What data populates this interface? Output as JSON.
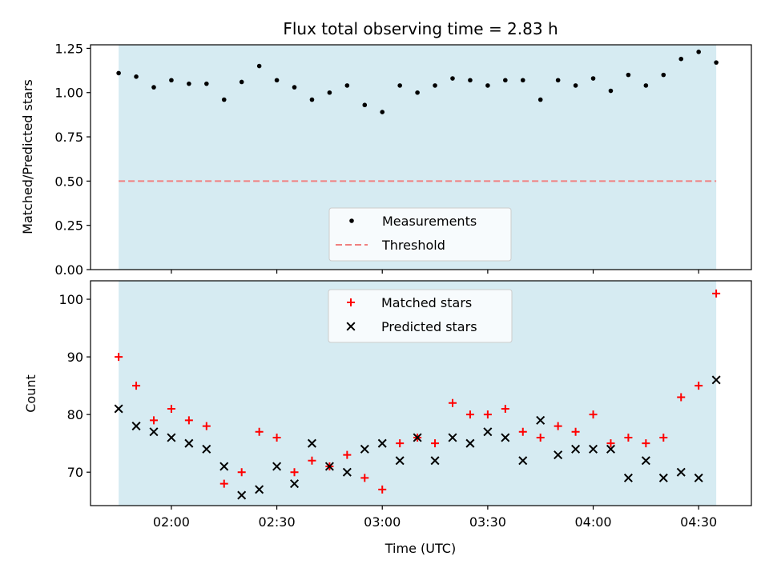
{
  "chart_data": [
    {
      "type": "scatter",
      "title": "Flux total observing time = 2.83 h",
      "ylabel": "Matched/Predicted stars",
      "xlim": [
        "01:37",
        "04:45"
      ],
      "ylim": [
        0,
        1.27
      ],
      "yticks": [
        "0.00",
        "0.25",
        "0.50",
        "0.75",
        "1.00",
        "1.25"
      ],
      "shaded_x_range": [
        "01:45",
        "04:35"
      ],
      "shade_color": "#add8e6",
      "grid": false,
      "legend_position": "lower center",
      "series": [
        {
          "name": "Measurements",
          "marker": "dot",
          "color": "#000000",
          "x": [
            "01:45",
            "01:50",
            "01:55",
            "02:00",
            "02:05",
            "02:10",
            "02:15",
            "02:20",
            "02:25",
            "02:30",
            "02:35",
            "02:40",
            "02:45",
            "02:50",
            "02:55",
            "03:00",
            "03:05",
            "03:10",
            "03:15",
            "03:20",
            "03:25",
            "03:30",
            "03:35",
            "03:40",
            "03:45",
            "03:50",
            "03:55",
            "04:00",
            "04:05",
            "04:10",
            "04:15",
            "04:20",
            "04:25",
            "04:30",
            "04:35"
          ],
          "y": [
            1.11,
            1.09,
            1.03,
            1.07,
            1.05,
            1.05,
            0.96,
            1.06,
            1.15,
            1.07,
            1.03,
            0.96,
            1.0,
            1.04,
            0.93,
            0.89,
            1.04,
            1.0,
            1.04,
            1.08,
            1.07,
            1.04,
            1.07,
            1.07,
            0.96,
            1.07,
            1.04,
            1.08,
            1.01,
            1.1,
            1.04,
            1.1,
            1.19,
            1.23,
            1.17
          ]
        },
        {
          "name": "Threshold",
          "line": "dashed",
          "color": "#f08080",
          "x": [
            "01:45",
            "04:35"
          ],
          "y": [
            0.5,
            0.5
          ]
        }
      ]
    },
    {
      "type": "scatter",
      "xlabel": "Time (UTC)",
      "ylabel": "Count",
      "xlim": [
        "01:37",
        "04:45"
      ],
      "ylim": [
        64.2,
        103.2
      ],
      "yticks": [
        "70",
        "80",
        "90",
        "100"
      ],
      "xticks": [
        "02:00",
        "02:30",
        "03:00",
        "03:30",
        "04:00",
        "04:30"
      ],
      "shaded_x_range": [
        "01:45",
        "04:35"
      ],
      "shade_color": "#add8e6",
      "grid": false,
      "legend_position": "upper center",
      "series": [
        {
          "name": "Matched stars",
          "marker": "plus",
          "color": "#ff0000",
          "x": [
            "01:45",
            "01:50",
            "01:55",
            "02:00",
            "02:05",
            "02:10",
            "02:15",
            "02:20",
            "02:25",
            "02:30",
            "02:35",
            "02:40",
            "02:45",
            "02:50",
            "02:55",
            "03:00",
            "03:05",
            "03:10",
            "03:15",
            "03:20",
            "03:25",
            "03:30",
            "03:35",
            "03:40",
            "03:45",
            "03:50",
            "03:55",
            "04:00",
            "04:05",
            "04:10",
            "04:15",
            "04:20",
            "04:25",
            "04:30",
            "04:35"
          ],
          "y": [
            90,
            85,
            79,
            81,
            79,
            78,
            68,
            70,
            77,
            76,
            70,
            72,
            71,
            73,
            69,
            67,
            75,
            76,
            75,
            82,
            80,
            80,
            81,
            77,
            76,
            78,
            77,
            80,
            75,
            76,
            75,
            76,
            83,
            85,
            101
          ]
        },
        {
          "name": "Predicted stars",
          "marker": "x",
          "color": "#000000",
          "x": [
            "01:45",
            "01:50",
            "01:55",
            "02:00",
            "02:05",
            "02:10",
            "02:15",
            "02:20",
            "02:25",
            "02:30",
            "02:35",
            "02:40",
            "02:45",
            "02:50",
            "02:55",
            "03:00",
            "03:05",
            "03:10",
            "03:15",
            "03:20",
            "03:25",
            "03:30",
            "03:35",
            "03:40",
            "03:45",
            "03:50",
            "03:55",
            "04:00",
            "04:05",
            "04:10",
            "04:15",
            "04:20",
            "04:25",
            "04:30",
            "04:35"
          ],
          "y": [
            81,
            78,
            77,
            76,
            75,
            74,
            71,
            66,
            67,
            71,
            68,
            75,
            71,
            70,
            74,
            75,
            72,
            76,
            72,
            76,
            75,
            77,
            76,
            72,
            79,
            73,
            74,
            74,
            74,
            69,
            72,
            69,
            70,
            69,
            86
          ]
        }
      ]
    }
  ]
}
